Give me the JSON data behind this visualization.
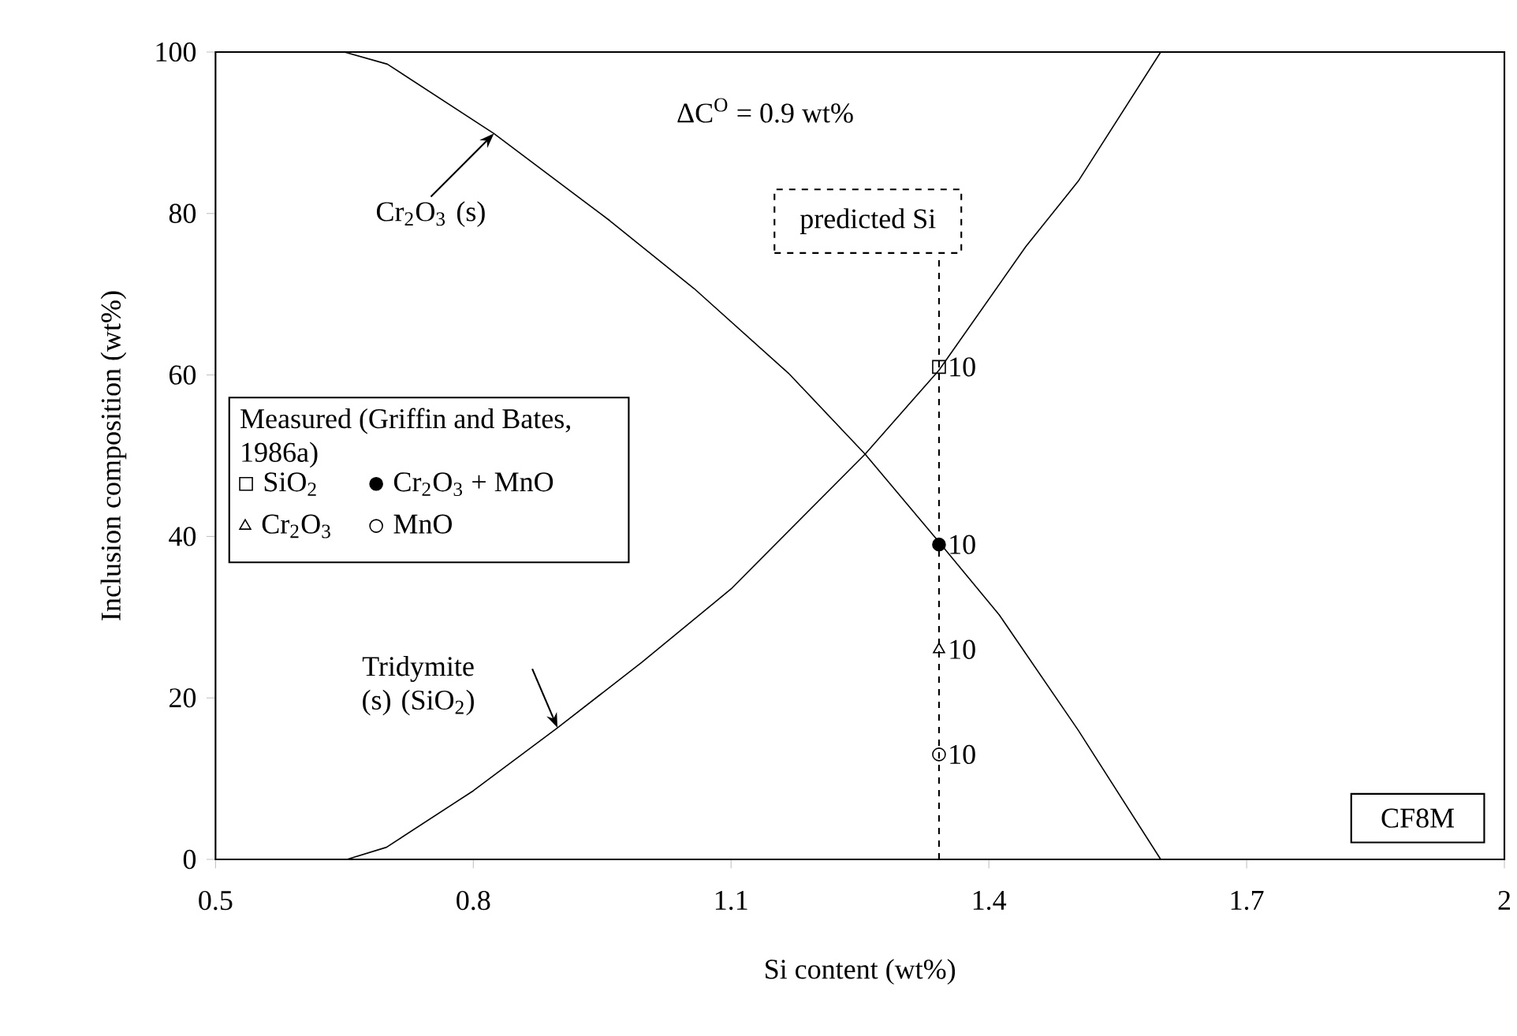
{
  "chart_data": {
    "type": "line",
    "xlabel": "Si content (wt%)",
    "ylabel": "Inclusion composition (wt%)",
    "xlim": [
      0.5,
      2
    ],
    "ylim": [
      0,
      100
    ],
    "xticks": [
      0.5,
      0.8,
      1.1,
      1.4,
      1.7,
      2
    ],
    "yticks": [
      0,
      20,
      40,
      60,
      80,
      100
    ],
    "grid": false,
    "legend": "left",
    "legend_title": "Measured (Griffin and Bates, 1986a)",
    "series": [
      {
        "color": "#000000",
        "line_style": "solid",
        "marker": "none",
        "x": [
          0.5,
          0.65,
          0.7,
          0.824,
          0.959,
          1.057,
          1.167,
          1.256,
          1.342,
          1.412,
          1.504,
          1.6,
          2
        ],
        "values": [
          100,
          100,
          98.5,
          89.9,
          79.1,
          70.7,
          60.2,
          50.2,
          39.3,
          30.3,
          16.0,
          0,
          0
        ]
      },
      {
        "color": "#000000",
        "line_style": "solid",
        "marker": "none",
        "x": [
          0.5,
          0.653,
          0.699,
          0.8,
          0.898,
          0.996,
          1.1,
          1.256,
          1.342,
          1.443,
          1.504,
          1.6,
          2
        ],
        "values": [
          0,
          0,
          1.5,
          8.5,
          16.3,
          24.4,
          33.5,
          50.2,
          60.6,
          75.9,
          84.0,
          100,
          100
        ]
      },
      {
        "type": "scatter",
        "name": "SiO$_{2}$",
        "color": "#000000",
        "marker": "square",
        "x": [
          1.342
        ],
        "values": [
          61
        ]
      },
      {
        "type": "scatter",
        "name": "Cr$_{2}$O$_{3}$ + MnO",
        "color": "#000000",
        "marker": "dot",
        "x": [
          1.342
        ],
        "values": [
          39
        ]
      },
      {
        "type": "scatter",
        "name": "Cr$_{2}$O$_{3}$",
        "color": "#000000",
        "marker": "triangle",
        "x": [
          1.342
        ],
        "values": [
          26
        ]
      },
      {
        "type": "scatter",
        "name": "MnO",
        "color": "#000000",
        "marker": "circle",
        "x": [
          1.342
        ],
        "values": [
          13
        ]
      }
    ],
    "ref_lines": [
      {
        "axis": "x",
        "value": 1.342,
        "label": "predicted Si",
        "line_style": "dashed"
      }
    ],
    "annotations": [
      "ΔC$^{O}$ = 0.9 wt%",
      {
        "text": "Cr$_{2}$O$_{3}$ (s)",
        "x": 0.824,
        "y": 89.9
      },
      {
        "text": "Tridymite (s) (SiO$_{2}$)",
        "x": 0.898,
        "y": 16.3
      },
      "CF8M",
      {
        "text": "10",
        "x": 1.342,
        "y": 61
      },
      {
        "text": "10",
        "x": 1.342,
        "y": 39
      },
      {
        "text": "10",
        "x": 1.342,
        "y": 26
      },
      {
        "text": "10",
        "x": 1.342,
        "y": 13
      }
    ]
  }
}
